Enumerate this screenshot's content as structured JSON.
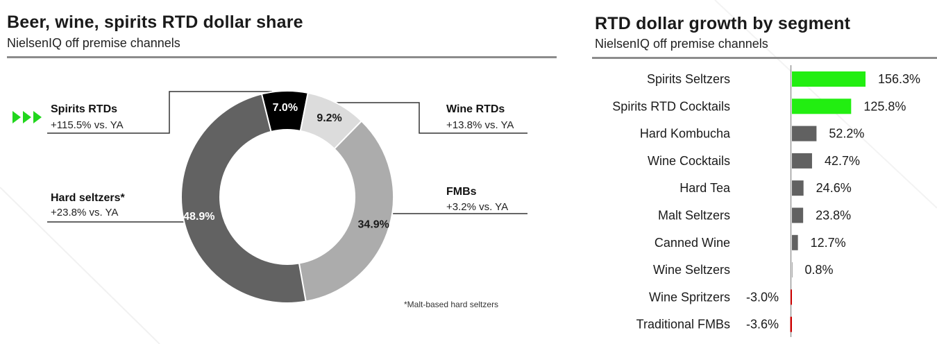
{
  "left_panel": {
    "title": "Beer, wine, spirits RTD dollar share",
    "subtitle": "NielsenIQ off premise channels",
    "segments": [
      {
        "name": "Spirits RTDs",
        "yoy": "+115.5% vs. YA"
      },
      {
        "name": "Wine RTDs",
        "yoy": "+13.8% vs. YA"
      },
      {
        "name": "Hard seltzers*",
        "yoy": "+23.8% vs. YA"
      },
      {
        "name": "FMBs",
        "yoy": "+3.2% vs. YA"
      }
    ],
    "footnote": "*Malt-based hard seltzers",
    "highlight_icon": "triple-chevron-right-icon"
  },
  "right_panel": {
    "title": "RTD dollar growth by segment",
    "subtitle": "NielsenIQ off premise channels"
  },
  "colors": {
    "spirits": "#000000",
    "wine": "#dcdcdc",
    "fmbs": "#acacac",
    "hard_seltzers": "#626262",
    "highlight_green": "#22ee11",
    "bar_gray": "#616161",
    "negative_red": "#cc0000",
    "rule_gray": "#8c8c8c"
  },
  "chart_data": [
    {
      "type": "pie",
      "variant": "donut",
      "title": "Beer, wine, spirits RTD dollar share",
      "categories": [
        "Spirits RTDs",
        "Wine RTDs",
        "FMBs",
        "Hard seltzers*"
      ],
      "values": [
        7.0,
        9.2,
        34.9,
        48.9
      ],
      "value_labels": [
        "7.0%",
        "9.2%",
        "34.9%",
        "48.9%"
      ],
      "unit": "%"
    },
    {
      "type": "bar",
      "orientation": "horizontal",
      "title": "RTD dollar growth by segment",
      "categories": [
        "Spirits Seltzers",
        "Spirits RTD Cocktails",
        "Hard Kombucha",
        "Wine Cocktails",
        "Hard Tea",
        "Malt Seltzers",
        "Canned Wine",
        "Wine Seltzers",
        "Wine Spritzers",
        "Traditional FMBs"
      ],
      "values": [
        156.3,
        125.8,
        52.2,
        42.7,
        24.6,
        23.8,
        12.7,
        0.8,
        -3.0,
        -3.6
      ],
      "value_labels": [
        "156.3%",
        "125.8%",
        "52.2%",
        "42.7%",
        "24.6%",
        "23.8%",
        "12.7%",
        "0.8%",
        "-3.0%",
        "-3.6%"
      ],
      "highlighted": [
        "Spirits Seltzers",
        "Spirits RTD Cocktails"
      ],
      "unit": "%",
      "grid": false
    }
  ]
}
